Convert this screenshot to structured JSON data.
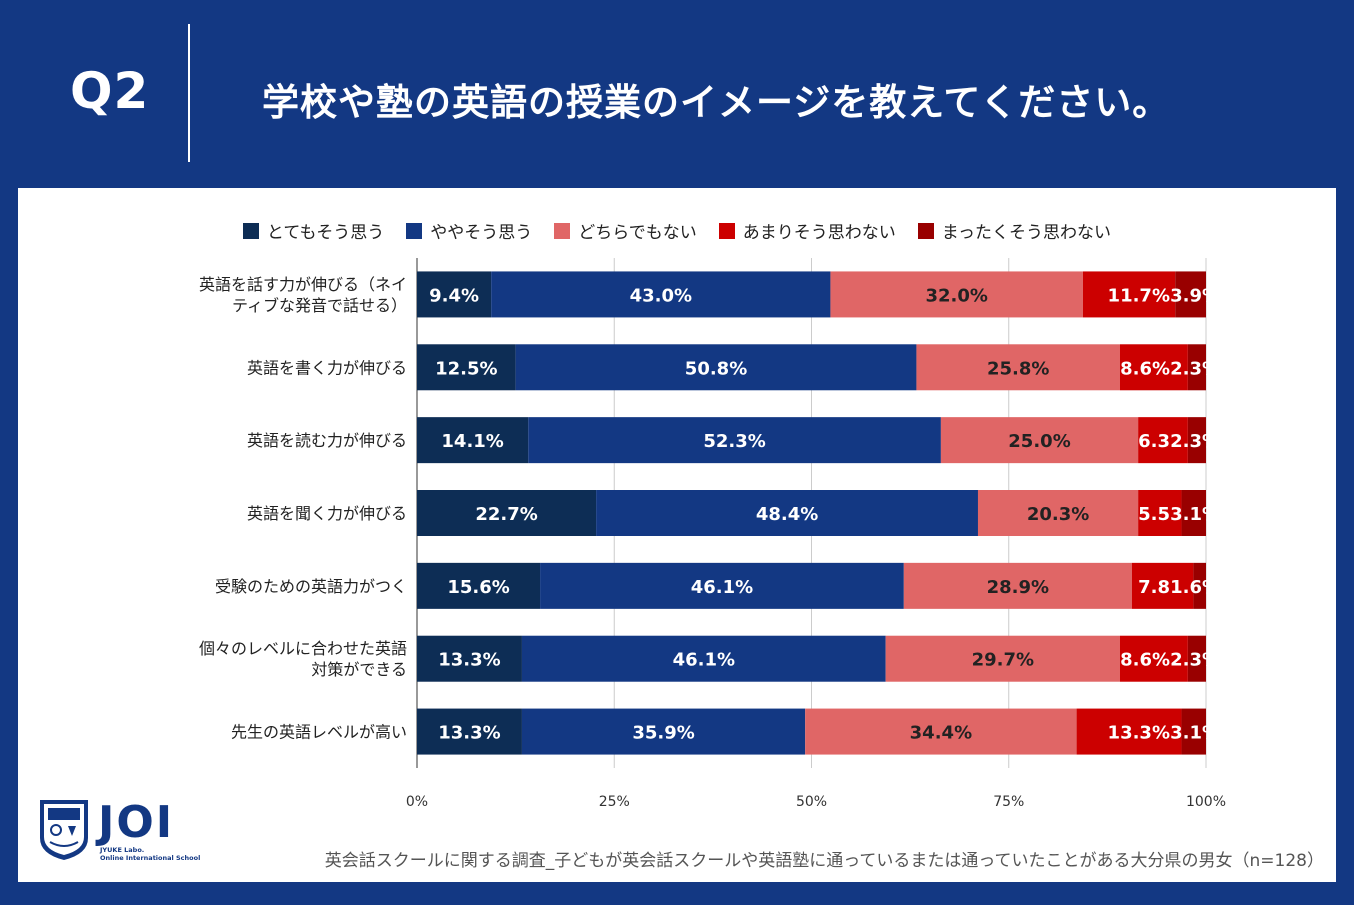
{
  "header": {
    "q_number": "Q2",
    "question": "学校や塾の英語の授業のイメージを教えてください。"
  },
  "chart_data": {
    "type": "bar",
    "orientation": "horizontal-stacked-100",
    "legend": [
      {
        "name": "とてもそう思う",
        "color": "#0d2d55"
      },
      {
        "name": "ややそう思う",
        "color": "#133883"
      },
      {
        "name": "どちらでもない",
        "color": "#e06666"
      },
      {
        "name": "あまりそう思わない",
        "color": "#cc0000"
      },
      {
        "name": "まったくそう思わない",
        "color": "#990000"
      }
    ],
    "categories": [
      "英語を話す力が伸びる（ネイティブな発音で話せる）",
      "英語を書く力が伸びる",
      "英語を読む力が伸びる",
      "英語を聞く力が伸びる",
      "受験のための英語力がつく",
      "個々のレベルに合わせた英語対策ができる",
      "先生の英語レベルが高い"
    ],
    "category_lines": [
      [
        "英語を話す力が伸びる（ネイ",
        "ティブな発音で話せる）"
      ],
      [
        "英語を書く力が伸びる"
      ],
      [
        "英語を読む力が伸びる"
      ],
      [
        "英語を聞く力が伸びる"
      ],
      [
        "受験のための英語力がつく"
      ],
      [
        "個々のレベルに合わせた英語",
        "対策ができる"
      ],
      [
        "先生の英語レベルが高い"
      ]
    ],
    "series": [
      {
        "name": "とてもそう思う",
        "values": [
          9.4,
          12.5,
          14.1,
          22.7,
          15.6,
          13.3,
          13.3
        ]
      },
      {
        "name": "ややそう思う",
        "values": [
          43.0,
          50.8,
          52.3,
          48.4,
          46.1,
          46.1,
          35.9
        ]
      },
      {
        "name": "どちらでもない",
        "values": [
          32.0,
          25.8,
          25.0,
          20.3,
          28.9,
          29.7,
          34.4
        ]
      },
      {
        "name": "あまりそう思わない",
        "values": [
          11.7,
          8.6,
          6.3,
          5.5,
          7.8,
          8.6,
          13.3
        ]
      },
      {
        "name": "まったくそう思わない",
        "values": [
          3.9,
          2.3,
          2.3,
          3.1,
          1.6,
          2.3,
          3.1
        ]
      }
    ],
    "data_labels": [
      [
        "9.4%",
        "43.0%",
        "32.0%",
        "11.7%",
        "3.9%"
      ],
      [
        "12.5%",
        "50.8%",
        "25.8%",
        "8.6%",
        "2.3%"
      ],
      [
        "14.1%",
        "52.3%",
        "25.0%",
        "6.3",
        "2.3%"
      ],
      [
        "22.7%",
        "48.4%",
        "20.3%",
        "5.5",
        "3.1%"
      ],
      [
        "15.6%",
        "46.1%",
        "28.9%",
        "7.8",
        "1.6%"
      ],
      [
        "13.3%",
        "46.1%",
        "29.7%",
        "8.6%",
        "2.3%"
      ],
      [
        "13.3%",
        "35.9%",
        "34.4%",
        "13.3%",
        "3.1%"
      ]
    ],
    "x_ticks": [
      "0%",
      "25%",
      "50%",
      "75%",
      "100%"
    ],
    "xlim": [
      0,
      100
    ],
    "grid": true,
    "legend_position": "top"
  },
  "logo": {
    "name": "JOI",
    "subtitle_1": "JYUKE Labo.",
    "subtitle_2": "Online International School"
  },
  "footnote": "英会話スクールに関する調査_子どもが英会話スクールや英語塾に通っているまたは通っていたことがある大分県の男女（n=128）"
}
